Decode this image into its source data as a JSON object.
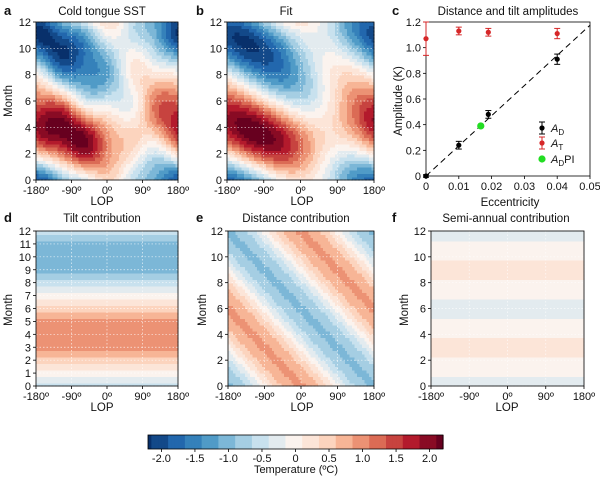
{
  "chart_data": [
    {
      "panel": "a",
      "type": "heatmap",
      "title": "Cold tongue SST",
      "xlabel": "LOP",
      "ylabel": "Month",
      "x_ticks": [
        "-180º",
        "-90º",
        "0º",
        "90º",
        "180º"
      ],
      "y_ticks": [
        "0",
        "2",
        "4",
        "6",
        "8",
        "10",
        "12"
      ],
      "xlim": [
        -180,
        180
      ],
      "ylim": [
        0,
        12
      ],
      "components": {
        "distance": 1.0,
        "tilt": 1.25,
        "semiannual": 0.15,
        "noise": 0.2
      }
    },
    {
      "panel": "b",
      "type": "heatmap",
      "title": "Fit",
      "xlabel": "LOP",
      "x_ticks": [
        "-180º",
        "-90º",
        "0º",
        "90º",
        "180º"
      ],
      "y_ticks": [
        "0",
        "2",
        "4",
        "6",
        "8",
        "10",
        "12"
      ],
      "xlim": [
        -180,
        180
      ],
      "ylim": [
        0,
        12
      ],
      "components": {
        "distance": 1.0,
        "tilt": 1.25,
        "semiannual": 0.15,
        "noise": 0
      }
    },
    {
      "panel": "c",
      "type": "scatter",
      "title": "Distance and tilt amplitudes",
      "xlabel": "Eccentricity",
      "ylabel": "Amplitude (K)",
      "xlim": [
        0,
        0.05
      ],
      "ylim": [
        0,
        1.2
      ],
      "x_ticks": [
        "0",
        "0.01",
        "0.02",
        "0.03",
        "0.04",
        "0.05"
      ],
      "y_ticks": [
        "0",
        "0.2",
        "0.4",
        "0.6",
        "0.8",
        "1.0",
        "1.2"
      ],
      "fit_line": {
        "slope": 23.5,
        "style": "dashed"
      },
      "series": [
        {
          "name": "A",
          "sub": "D",
          "color": "#000000",
          "x": [
            0.0,
            0.01,
            0.019,
            0.04
          ],
          "y": [
            0.0,
            0.24,
            0.48,
            0.91
          ],
          "err": [
            0.01,
            0.03,
            0.03,
            0.04
          ]
        },
        {
          "name": "A",
          "sub": "T",
          "color": "#d62728",
          "x": [
            0.0,
            0.01,
            0.019,
            0.04
          ],
          "y": [
            1.07,
            1.13,
            1.12,
            1.11
          ],
          "err": [
            0.13,
            0.03,
            0.03,
            0.04
          ]
        },
        {
          "name": "A",
          "sub": "D",
          "suffix": "PI",
          "color": "#22dd22",
          "x": [
            0.0167
          ],
          "y": [
            0.39
          ],
          "err": [
            0
          ]
        }
      ]
    },
    {
      "panel": "d",
      "type": "heatmap",
      "title": "Tilt contribution",
      "xlabel": "LOP",
      "ylabel": "Month",
      "x_ticks": [
        "-180º",
        "-90º",
        "0º",
        "90º",
        "180º"
      ],
      "y_ticks": [
        "0",
        "1",
        "2",
        "3",
        "4",
        "5",
        "6",
        "7",
        "8",
        "9",
        "10",
        "11",
        "12"
      ],
      "xlim": [
        -180,
        180
      ],
      "ylim": [
        0,
        12
      ],
      "components": {
        "distance": 0,
        "tilt": 1.1,
        "semiannual": 0,
        "noise": 0
      }
    },
    {
      "panel": "e",
      "type": "heatmap",
      "title": "Distance contribution",
      "xlabel": "LOP",
      "ylabel": "Month",
      "x_ticks": [
        "-180º",
        "-90º",
        "0º",
        "90º",
        "180º"
      ],
      "y_ticks": [
        "0",
        "2",
        "4",
        "6",
        "8",
        "10",
        "12"
      ],
      "xlim": [
        -180,
        180
      ],
      "ylim": [
        0,
        12
      ],
      "components": {
        "distance": 0.9,
        "tilt": 0,
        "semiannual": 0,
        "noise": 0
      }
    },
    {
      "panel": "f",
      "type": "heatmap",
      "title": "Semi-annual contribution",
      "xlabel": "LOP",
      "ylabel": "Month",
      "x_ticks": [
        "-180º",
        "-90º",
        "0º",
        "90º",
        "180º"
      ],
      "y_ticks": [
        "0",
        "2",
        "4",
        "6",
        "8",
        "10",
        "12"
      ],
      "xlim": [
        -180,
        180
      ],
      "ylim": [
        0,
        12
      ],
      "components": {
        "distance": 0,
        "tilt": 0,
        "semiannual": 0.18,
        "noise": 0
      }
    }
  ],
  "colorbar": {
    "label": "Temperature (ºC)",
    "range": [
      -2.2,
      2.2
    ],
    "ticks": [
      "-2.0",
      "-1.5",
      "-1.0",
      "-0.5",
      "0",
      "0.5",
      "1.0",
      "1.5",
      "2.0"
    ],
    "tick_values": [
      -2.0,
      -1.5,
      -1.0,
      -0.5,
      0,
      0.5,
      1.0,
      1.5,
      2.0
    ],
    "colors": [
      "#08306b",
      "#2166ac",
      "#4393c3",
      "#92c5de",
      "#d1e5f0",
      "#fbf3ee",
      "#fddbc7",
      "#f4a582",
      "#d6604d",
      "#b2182b",
      "#67001f"
    ]
  }
}
